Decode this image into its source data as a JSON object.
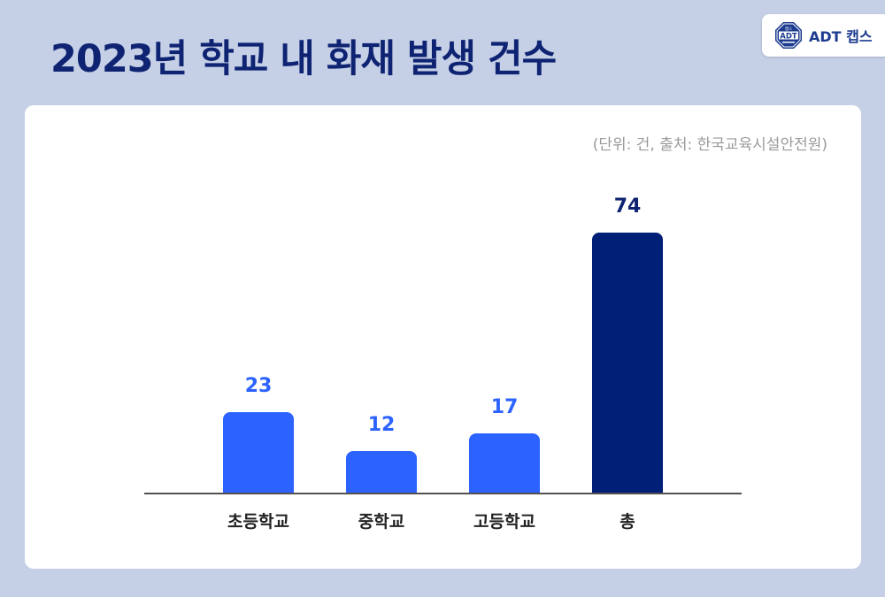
{
  "header": {
    "title": "2023년 학교 내 화재 발생 건수"
  },
  "logo": {
    "badge_top": "캡스",
    "badge_main": "ADT",
    "text": "ADT 캡스"
  },
  "card": {
    "source_note": "(단위: 건, 출처: 한국교육시설안전원)"
  },
  "colors": {
    "background": "#c5d0e6",
    "title": "#0f2373",
    "bar_primary": "#2c63ff",
    "bar_total": "#001f77",
    "value_primary": "#2c63ff",
    "value_total": "#0f2373"
  },
  "chart_data": {
    "type": "bar",
    "title": "2023년 학교 내 화재 발생 건수",
    "subtitle": "(단위: 건, 출처: 한국교육시설안전원)",
    "categories": [
      "초등학교",
      "중학교",
      "고등학교",
      "총"
    ],
    "values": [
      23,
      12,
      17,
      74
    ],
    "value_labels": [
      "23",
      "12",
      "17",
      "74"
    ],
    "xlabel": "",
    "ylabel": "",
    "ylim": [
      0,
      74
    ],
    "grid": false,
    "legend": "none",
    "bar_colors": [
      "#2c63ff",
      "#2c63ff",
      "#2c63ff",
      "#001f77"
    ]
  }
}
